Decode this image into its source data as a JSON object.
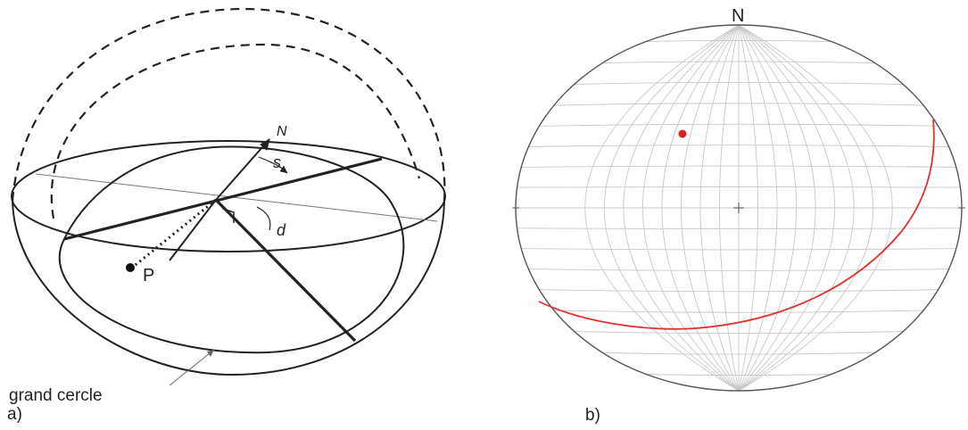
{
  "panel_a": {
    "label": "a)",
    "north_label": "N",
    "strike_label": "s",
    "dip_label": "d",
    "pole_label": "P",
    "caption": "grand cercle"
  },
  "panel_b": {
    "label": "b)",
    "north_label": "N",
    "pole_color": "#dd1f1f",
    "great_circle_color": "#e03030",
    "grid_color": "#c8c8c8"
  }
}
